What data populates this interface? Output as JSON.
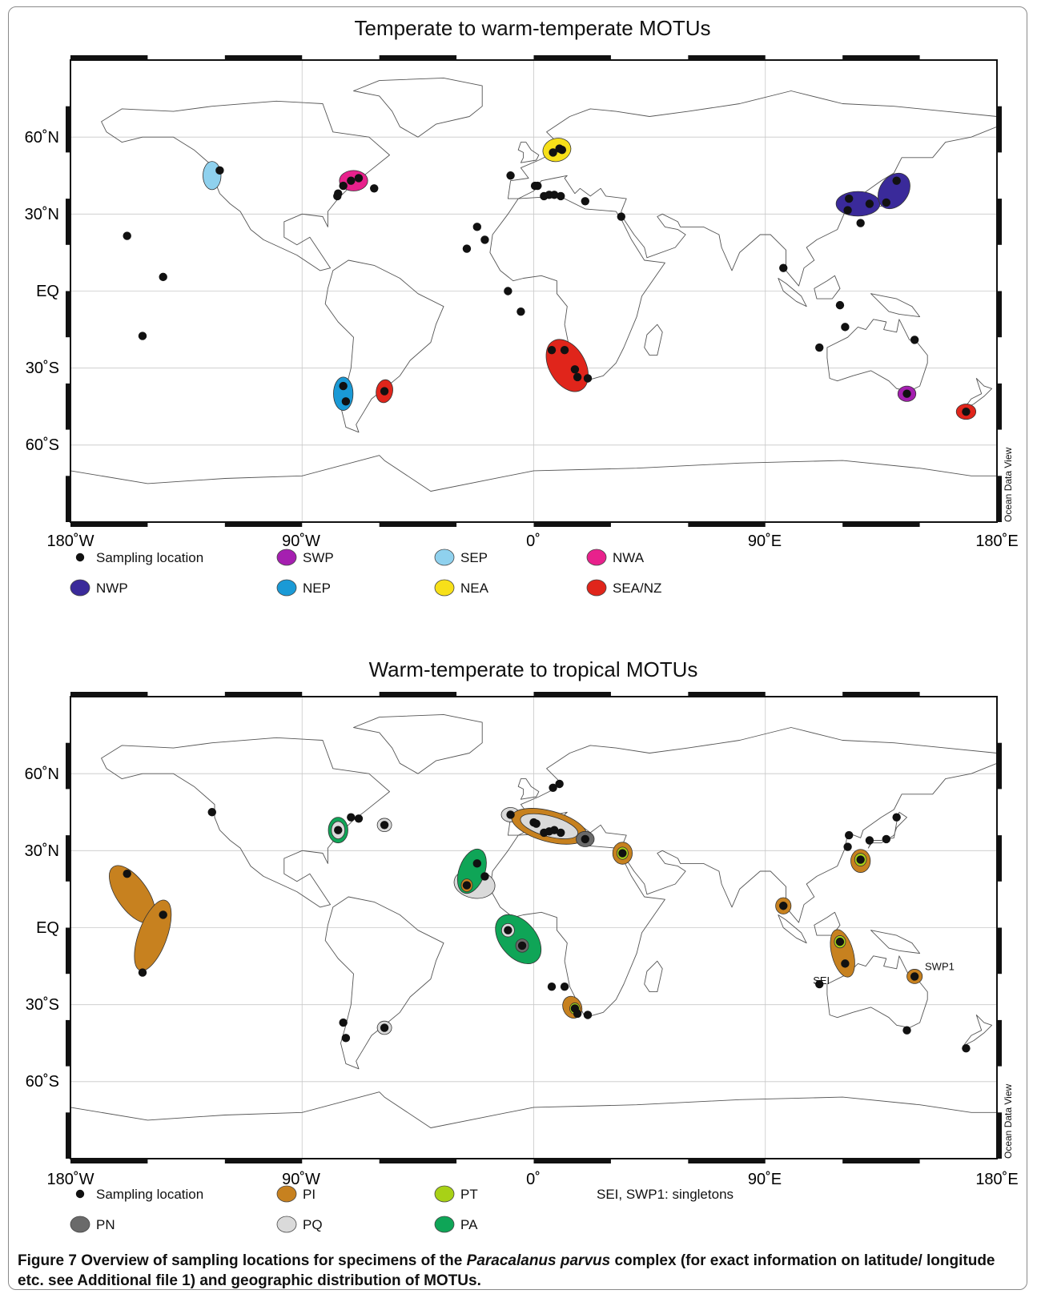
{
  "figure": {
    "caption": {
      "label": "Figure 7",
      "part1": "Overview of sampling locations for specimens of the ",
      "species": "Paracalanus parvus",
      "part2": " complex (for exact information on latitude/ longitude etc. see Additional file 1) and geographic distribution of MOTUs."
    },
    "ticks": {
      "lon": [
        "180˚W",
        "90˚W",
        "0˚",
        "90˚E",
        "180˚E"
      ],
      "lat": [
        "60˚N",
        "30˚N",
        "EQ",
        "30˚S",
        "60˚S"
      ]
    },
    "watermark": "Ocean Data View",
    "colors": {
      "SWP": "#a51fb0",
      "SEP": "#8fd1ee",
      "NWA": "#e8218c",
      "NWP": "#3a2a9a",
      "NEP": "#1a9ad6",
      "NEA": "#f7e019",
      "SEA/NZ": "#e0251b",
      "PI": "#c7811f",
      "PT": "#a8d116",
      "PN": "#6a6a6a",
      "PQ": "#dadada",
      "PA": "#0fa557"
    },
    "maps": [
      {
        "title": "Temperate to warm-temperate MOTUs",
        "legend": [
          {
            "label": "Sampling location",
            "type": "dot"
          },
          {
            "label": "SWP",
            "color": "SWP"
          },
          {
            "label": "SEP",
            "color": "SEP"
          },
          {
            "label": "NWA",
            "color": "NWA"
          },
          {
            "label": "NWP",
            "color": "NWP"
          },
          {
            "label": "NEP",
            "color": "NEP"
          },
          {
            "label": "NEA",
            "color": "NEA"
          },
          {
            "label": "SEA/NZ",
            "color": "SEA/NZ"
          }
        ],
        "motus": [
          {
            "name": "SEP",
            "lon": -125,
            "lat": 45,
            "rlon": 3.5,
            "rlat": 5.5,
            "rot": 0
          },
          {
            "name": "NWA",
            "lon": -70,
            "lat": 43,
            "rlon": 5.5,
            "rlat": 4,
            "rot": 0
          },
          {
            "name": "NEA",
            "lon": 9,
            "lat": 55,
            "rlon": 5.5,
            "rlat": 4.5,
            "rot": -15
          },
          {
            "name": "NWP",
            "lon": 126,
            "lat": 34,
            "rlon": 8.5,
            "rlat": 4.8,
            "rot": 0
          },
          {
            "name": "NWP",
            "lon": 140,
            "lat": 39,
            "rlon": 5.5,
            "rlat": 7.5,
            "rot": 35
          },
          {
            "name": "NEP",
            "lon": -74,
            "lat": -40,
            "rlon": 3.8,
            "rlat": 6.5,
            "rot": 0
          },
          {
            "name": "SEA/NZ",
            "lon": -58,
            "lat": -39,
            "rlon": 3.2,
            "rlat": 4.5,
            "rot": 10
          },
          {
            "name": "SEA/NZ",
            "lon": 13,
            "lat": -29,
            "rlon": 7,
            "rlat": 11,
            "rot": -30
          },
          {
            "name": "SEA/NZ",
            "lon": 168,
            "lat": -47,
            "rlon": 3.8,
            "rlat": 3,
            "rot": 0
          },
          {
            "name": "SWP",
            "lon": 145,
            "lat": -40,
            "rlon": 3.5,
            "rlat": 3,
            "rot": 0
          }
        ],
        "points": [
          [
            -122,
            47
          ],
          [
            -68,
            44
          ],
          [
            -71,
            43
          ],
          [
            -74,
            41
          ],
          [
            -76,
            38
          ],
          [
            -76.3,
            37
          ],
          [
            -62,
            40
          ],
          [
            -158,
            21.5
          ],
          [
            -144,
            5.5
          ],
          [
            -152,
            -17.5
          ],
          [
            -9,
            45
          ],
          [
            0.5,
            41
          ],
          [
            1.5,
            41
          ],
          [
            4,
            37
          ],
          [
            6,
            37.5
          ],
          [
            8,
            37.5
          ],
          [
            10.5,
            37
          ],
          [
            20,
            35
          ],
          [
            34,
            29
          ],
          [
            7.5,
            54
          ],
          [
            10,
            55.5
          ],
          [
            11,
            55
          ],
          [
            -22,
            25
          ],
          [
            -19,
            20
          ],
          [
            -26,
            16.5
          ],
          [
            -10,
            0
          ],
          [
            -5,
            -8
          ],
          [
            7,
            -23
          ],
          [
            12,
            -23
          ],
          [
            16,
            -30.5
          ],
          [
            17,
            -33.5
          ],
          [
            21,
            -34
          ],
          [
            -74,
            -37
          ],
          [
            -73,
            -43
          ],
          [
            -58,
            -39
          ],
          [
            97,
            9
          ],
          [
            119,
            -5.5
          ],
          [
            121,
            -14
          ],
          [
            111,
            -22
          ],
          [
            148,
            -19
          ],
          [
            145,
            -40
          ],
          [
            168,
            -47
          ],
          [
            122.5,
            36
          ],
          [
            122,
            31.5
          ],
          [
            130.5,
            34
          ],
          [
            127,
            26.5
          ],
          [
            137,
            34.5
          ],
          [
            141,
            43
          ]
        ]
      },
      {
        "title": "Warm-temperate to tropical MOTUs",
        "legend": [
          {
            "label": "Sampling location",
            "type": "dot"
          },
          {
            "label": "PI",
            "color": "PI"
          },
          {
            "label": "PT",
            "color": "PT"
          },
          {
            "label": "SEI, SWP1: singletons",
            "type": "text"
          },
          {
            "label": "PN",
            "color": "PN"
          },
          {
            "label": "PQ",
            "color": "PQ"
          },
          {
            "label": "PA",
            "color": "PA"
          }
        ],
        "motus": [
          {
            "name": "PI",
            "lon": -156,
            "lat": 13,
            "rlon": 6,
            "rlat": 13,
            "rot": -35
          },
          {
            "name": "PI",
            "lon": -148,
            "lat": -3,
            "rlon": 5.5,
            "rlat": 14.5,
            "rot": 20
          },
          {
            "name": "PA",
            "lon": -76,
            "lat": 38,
            "rlon": 3.8,
            "rlat": 5,
            "rot": 0
          },
          {
            "name": "PQ",
            "lon": -76,
            "lat": 38,
            "rlon": 2.6,
            "rlat": 3.4,
            "rot": 0
          },
          {
            "name": "PQ",
            "lon": -58,
            "lat": 40,
            "rlon": 2.8,
            "rlat": 2.6,
            "rot": 0
          },
          {
            "name": "PQ",
            "lon": -9,
            "lat": 44,
            "rlon": 3.6,
            "rlat": 2.8,
            "rot": 0
          },
          {
            "name": "PI",
            "lon": 6,
            "lat": 39.5,
            "rlon": 15,
            "rlat": 6,
            "rot": 15
          },
          {
            "name": "PQ",
            "lon": 6,
            "lat": 39.5,
            "rlon": 11.5,
            "rlat": 4,
            "rot": 15
          },
          {
            "name": "PN",
            "lon": 20,
            "lat": 34.5,
            "rlon": 3.5,
            "rlat": 3,
            "rot": 0
          },
          {
            "name": "PI",
            "lon": 34.5,
            "lat": 29,
            "rlon": 3.8,
            "rlat": 4.3,
            "rot": 0
          },
          {
            "name": "PT",
            "lon": 34.5,
            "lat": 29,
            "rlon": 2.2,
            "rlat": 2.4,
            "rot": 0
          },
          {
            "name": "PQ",
            "lon": -23,
            "lat": 17,
            "rlon": 8,
            "rlat": 5.5,
            "rot": 10
          },
          {
            "name": "PA",
            "lon": -24,
            "lat": 22,
            "rlon": 5,
            "rlat": 9,
            "rot": 20
          },
          {
            "name": "PI",
            "lon": -26,
            "lat": 16.5,
            "rlon": 2.2,
            "rlat": 2.5,
            "rot": 0
          },
          {
            "name": "PA",
            "lon": -6,
            "lat": -4.5,
            "rlon": 7,
            "rlat": 11,
            "rot": -40
          },
          {
            "name": "PQ",
            "lon": -10,
            "lat": -1,
            "rlon": 2.5,
            "rlat": 2.6,
            "rot": 0
          },
          {
            "name": "PN",
            "lon": -4.5,
            "lat": -7,
            "rlon": 2.5,
            "rlat": 2.6,
            "rot": 0
          },
          {
            "name": "PI",
            "lon": 15,
            "lat": -31,
            "rlon": 3.6,
            "rlat": 4.4,
            "rot": -25
          },
          {
            "name": "PT",
            "lon": 16,
            "lat": -31.5,
            "rlon": 2,
            "rlat": 2.2,
            "rot": 0
          },
          {
            "name": "PQ",
            "lon": -58,
            "lat": -39,
            "rlon": 2.8,
            "rlat": 2.6,
            "rot": 0
          },
          {
            "name": "PI",
            "lon": 97,
            "lat": 8.5,
            "rlon": 3,
            "rlat": 3.2,
            "rot": 0
          },
          {
            "name": "PI",
            "lon": 120,
            "lat": -10,
            "rlon": 4.2,
            "rlat": 9.5,
            "rot": -15
          },
          {
            "name": "PT",
            "lon": 119,
            "lat": -5.5,
            "rlon": 2.2,
            "rlat": 2.4,
            "rot": 0
          },
          {
            "name": "PI",
            "lon": 127,
            "lat": 26,
            "rlon": 3.8,
            "rlat": 4.5,
            "rot": 0
          },
          {
            "name": "PT",
            "lon": 127,
            "lat": 26.5,
            "rlon": 2.3,
            "rlat": 2.5,
            "rot": 0
          },
          {
            "name": "PI",
            "lon": 148,
            "lat": -19,
            "rlon": 3,
            "rlat": 2.8,
            "rot": 0
          }
        ],
        "points": [
          [
            -158,
            21
          ],
          [
            -144,
            5
          ],
          [
            -152,
            -17.5
          ],
          [
            -125,
            45
          ],
          [
            -76,
            38
          ],
          [
            -71,
            43
          ],
          [
            -68,
            42.5
          ],
          [
            -58,
            40
          ],
          [
            -9,
            44
          ],
          [
            0,
            41
          ],
          [
            1,
            40.5
          ],
          [
            4,
            37
          ],
          [
            6,
            37.5
          ],
          [
            8,
            38
          ],
          [
            10.5,
            37
          ],
          [
            20,
            34.5
          ],
          [
            34.5,
            29
          ],
          [
            7.5,
            54.5
          ],
          [
            10,
            56
          ],
          [
            -22,
            25
          ],
          [
            -19,
            20
          ],
          [
            -26,
            16.5
          ],
          [
            -10,
            -1
          ],
          [
            -4.5,
            -7
          ],
          [
            7,
            -23
          ],
          [
            12,
            -23
          ],
          [
            16,
            -31.5
          ],
          [
            17,
            -33.5
          ],
          [
            21,
            -34
          ],
          [
            -74,
            -37
          ],
          [
            -73,
            -43
          ],
          [
            -58,
            -39
          ],
          [
            97,
            8.5
          ],
          [
            119,
            -5.5
          ],
          [
            121,
            -14
          ],
          [
            111,
            -22
          ],
          [
            148,
            -19
          ],
          [
            145,
            -40
          ],
          [
            168,
            -47
          ],
          [
            122.5,
            36
          ],
          [
            122,
            31.5
          ],
          [
            127,
            26.5
          ],
          [
            130.5,
            34
          ],
          [
            137,
            34.5
          ],
          [
            141,
            43
          ]
        ],
        "labels": [
          {
            "text": "SEI",
            "lon": 108.5,
            "lat": -22
          },
          {
            "text": "SWP1",
            "lon": 152,
            "lat": -16.5
          }
        ]
      }
    ]
  }
}
